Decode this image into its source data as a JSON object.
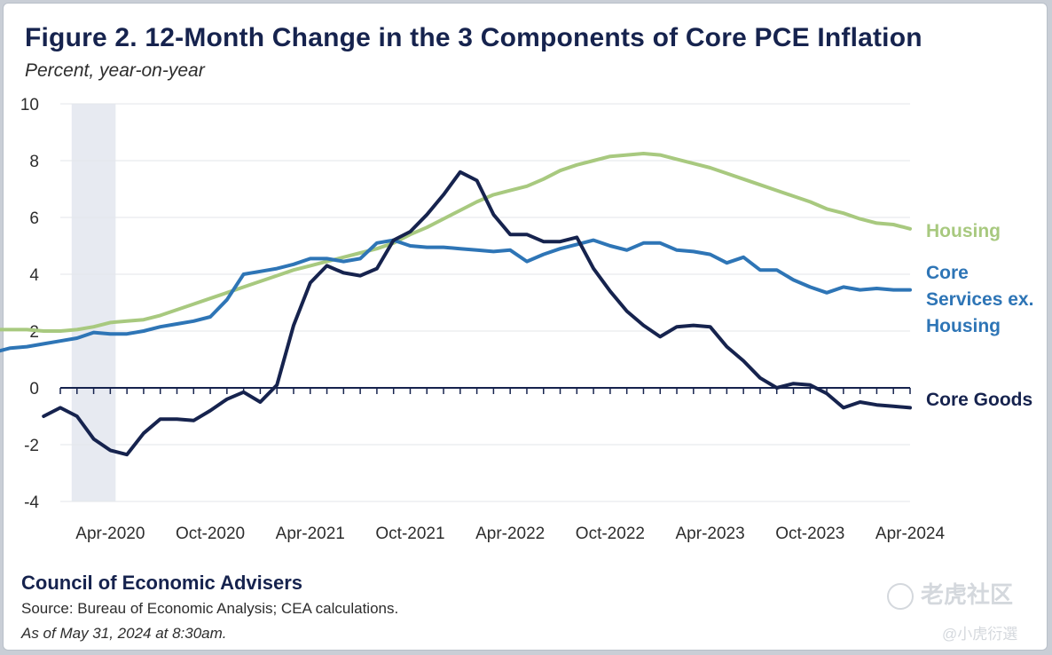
{
  "title": "Figure 2. 12-Month Change in the 3 Components of Core PCE Inflation",
  "subtitle": "Percent, year-on-year",
  "footer": {
    "org": "Council of Economic Advisers",
    "source": "Source: Bureau of Economic Analysis; CEA calculations.",
    "asof": "As of May 31, 2024 at 8:30am."
  },
  "watermark": {
    "main": "老虎社区",
    "handle": "@小虎衍選"
  },
  "chart_data": {
    "type": "line",
    "title": "Figure 2. 12-Month Change in the 3 Components of Core PCE Inflation",
    "ylabel": "Percent, year-on-year",
    "ylim": [
      -4,
      10
    ],
    "yticks": [
      "-4",
      "-2",
      "0",
      "2",
      "4",
      "6",
      "8",
      "10"
    ],
    "xtick_labels": [
      "Apr-2020",
      "Oct-2020",
      "Apr-2021",
      "Oct-2021",
      "Apr-2022",
      "Oct-2022",
      "Apr-2023",
      "Oct-2023",
      "Apr-2024"
    ],
    "x_start": "Jan-2020",
    "x_end": "Apr-2024",
    "recession_shading": [
      "Feb-2020",
      "Apr-2020"
    ],
    "grid": true,
    "legend": "inline labels at right end of lines",
    "colors": {
      "housing": "#a8c97f",
      "core_services": "#2e75b6",
      "core_goods": "#16234e",
      "recession": "#e7eaf1"
    },
    "series": [
      {
        "name": "Housing",
        "label_lines": [
          "Housing"
        ],
        "color": "#a8c97f",
        "values": [
          3.4,
          3.35,
          3.3,
          3.25,
          3.15,
          3.1,
          3.1,
          2.95,
          2.85,
          2.8,
          2.7,
          2.6,
          2.5,
          2.45,
          2.35,
          2.2,
          2.1,
          2.05,
          2.05,
          2.05,
          2.0,
          2.0,
          2.05,
          2.15,
          2.3,
          2.35,
          2.4,
          2.55,
          2.75,
          2.95,
          3.15,
          3.35,
          3.55,
          3.75,
          3.95,
          4.15,
          4.3,
          4.45,
          4.6,
          4.75,
          4.9,
          5.1,
          5.4,
          5.65,
          5.95,
          6.25,
          6.55,
          6.8,
          6.95,
          7.1,
          7.35,
          7.65,
          7.85,
          8.0,
          8.15,
          8.2,
          8.25,
          8.2,
          8.05,
          7.9,
          7.75,
          7.55,
          7.35,
          7.15,
          6.95,
          6.75,
          6.55,
          6.3,
          6.15,
          5.95,
          5.8,
          5.75,
          5.6
        ]
      },
      {
        "name": "Core Services ex. Housing",
        "label_lines": [
          "Core",
          "Services ex.",
          "Housing"
        ],
        "color": "#2e75b6",
        "values": [
          2.0,
          2.05,
          1.9,
          1.25,
          1.4,
          1.45,
          1.55,
          1.65,
          1.75,
          1.95,
          1.9,
          1.9,
          2.0,
          2.15,
          2.25,
          2.35,
          2.5,
          3.1,
          4.0,
          4.1,
          4.2,
          4.35,
          4.55,
          4.55,
          4.45,
          4.55,
          5.1,
          5.2,
          5.0,
          4.95,
          4.95,
          4.9,
          4.85,
          4.8,
          4.85,
          4.45,
          4.7,
          4.9,
          5.05,
          5.2,
          5.0,
          4.85,
          5.1,
          5.1,
          4.85,
          4.8,
          4.7,
          4.4,
          4.6,
          4.15,
          4.15,
          3.8,
          3.55,
          3.35,
          3.55,
          3.45,
          3.5,
          3.45,
          3.45
        ]
      },
      {
        "name": "Core Goods",
        "label_lines": [
          "Core Goods"
        ],
        "color": "#16234e",
        "values": [
          -1.0,
          -0.7,
          -1.0,
          -1.8,
          -2.2,
          -2.35,
          -1.6,
          -1.1,
          -1.1,
          -1.15,
          -0.8,
          -0.4,
          -0.15,
          -0.5,
          0.1,
          2.2,
          3.7,
          4.3,
          4.05,
          3.95,
          4.2,
          5.2,
          5.5,
          6.1,
          6.8,
          7.6,
          7.3,
          6.1,
          5.4,
          5.4,
          5.15,
          5.15,
          5.3,
          4.2,
          3.4,
          2.7,
          2.2,
          1.8,
          2.15,
          2.2,
          2.15,
          1.45,
          0.95,
          0.35,
          0.0,
          0.15,
          0.1,
          -0.2,
          -0.7,
          -0.5,
          -0.6,
          -0.65,
          -0.7
        ]
      }
    ]
  }
}
